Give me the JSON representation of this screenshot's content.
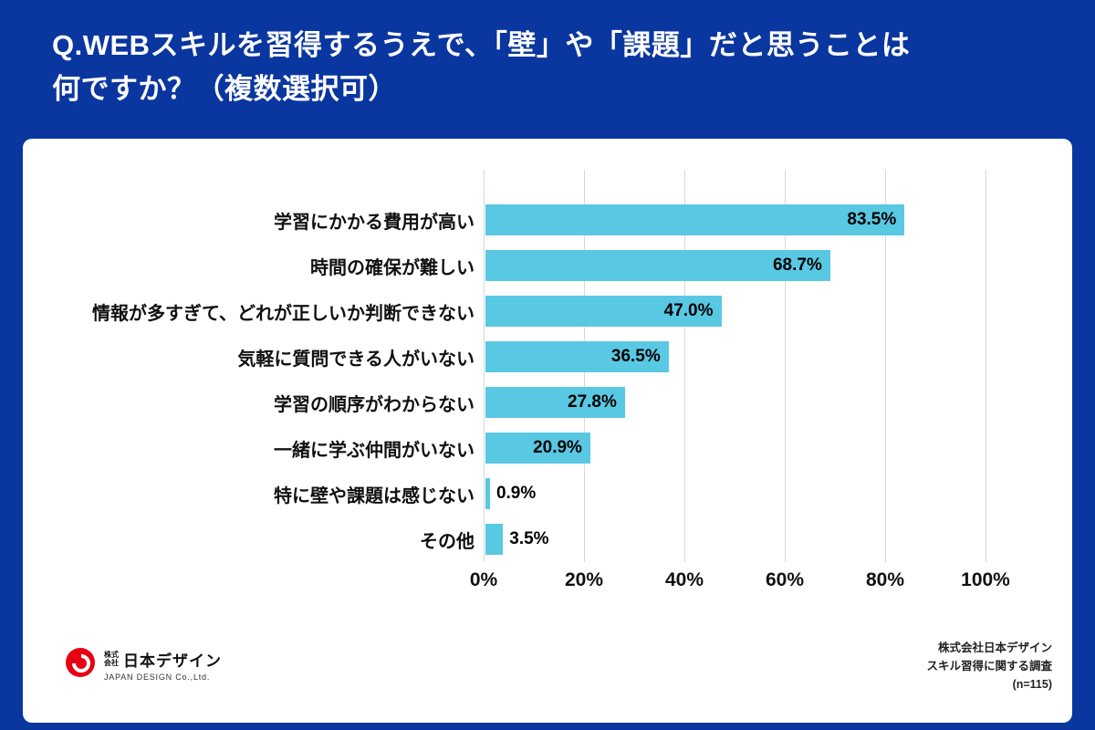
{
  "page": {
    "background": "#0a36a0",
    "card_background": "#ffffff"
  },
  "header": {
    "title_line1": "Q.WEBスキルを習得するうえで、「壁」や「課題」だと思うことは",
    "title_line2": "何ですか？（複数選択可）"
  },
  "chart_data": {
    "type": "bar",
    "orientation": "horizontal",
    "title": "WEBスキルを習得するうえで、「壁」や「課題」だと思うこと（複数選択可）",
    "categories": [
      "学習にかかる費用が高い",
      "時間の確保が難しい",
      "情報が多すぎて、どれが正しいか判断できない",
      "気軽に質問できる人がいない",
      "学習の順序がわからない",
      "一緒に学ぶ仲間がいない",
      "特に壁や課題は感じない",
      "その他"
    ],
    "values": [
      83.5,
      68.7,
      47.0,
      36.5,
      27.8,
      20.9,
      0.9,
      3.5
    ],
    "value_labels": [
      "83.5%",
      "68.7%",
      "47.0%",
      "36.5%",
      "27.8%",
      "20.9%",
      "0.9%",
      "3.5%"
    ],
    "x_ticks": [
      "0%",
      "20%",
      "40%",
      "60%",
      "80%",
      "100%"
    ],
    "xlim": [
      0,
      100
    ],
    "bar_color": "#59c8e3",
    "grid": true,
    "legend": "none"
  },
  "footer": {
    "logo": {
      "prefix": "株式会社",
      "name": "日本デザイン",
      "sub": "JAPAN DESIGN Co.,Ltd.",
      "mark_color": "#e60012"
    },
    "source": {
      "line1": "株式会社日本デザイン",
      "line2": "スキル習得に関する調査",
      "line3": "(n=115)"
    }
  }
}
